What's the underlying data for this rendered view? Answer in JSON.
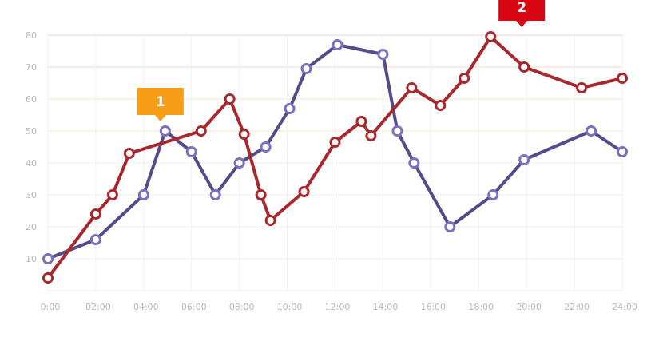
{
  "chart_data": {
    "type": "line",
    "title": "",
    "xlabel": "",
    "ylabel": "",
    "xlim": [
      0,
      24
    ],
    "ylim": [
      0,
      80
    ],
    "x_ticks": [
      "0:00",
      "02:00",
      "04:00",
      "06:00",
      "08:00",
      "10:00",
      "12:00",
      "14:00",
      "16:00",
      "18:00",
      "20:00",
      "22:00",
      "24:00"
    ],
    "x_tick_values": [
      0,
      2,
      4,
      6,
      8,
      10,
      12,
      14,
      16,
      18,
      20,
      22,
      24
    ],
    "y_ticks": [
      "10",
      "20",
      "30",
      "40",
      "50",
      "60",
      "70",
      "80"
    ],
    "y_tick_values": [
      10,
      20,
      30,
      40,
      50,
      60,
      70,
      80
    ],
    "grid": true,
    "legend": "none",
    "series": [
      {
        "color": "#564a8a",
        "marker_color": "#7b6fc2",
        "x": [
          0,
          2,
          4,
          4.9,
          6,
          7,
          8,
          9.1,
          10.1,
          10.8,
          12.1,
          14,
          14.6,
          15.3,
          16.8,
          18.6,
          19.9,
          22.7,
          24
        ],
        "y": [
          10,
          16,
          30,
          50,
          43.5,
          30,
          40,
          45,
          57,
          69.5,
          77,
          74,
          50,
          40,
          20,
          30,
          41,
          50,
          43.5
        ]
      },
      {
        "color": "#a8282d",
        "marker_color": "#a8282d",
        "x": [
          0,
          2,
          2.7,
          3.4,
          6.4,
          7.6,
          8.2,
          8.9,
          9.3,
          10.7,
          12,
          13.1,
          13.5,
          15.2,
          16.4,
          17.4,
          18.5,
          19.9,
          22.3,
          24
        ],
        "y": [
          4,
          24,
          30,
          43,
          50,
          60,
          49,
          30,
          22,
          31,
          46.5,
          53,
          48.5,
          63.5,
          58,
          66.5,
          79.5,
          70,
          63.5,
          66.5
        ]
      }
    ],
    "annotations": [
      {
        "label": "1",
        "x": 4.7,
        "y": 50,
        "color": "#f79e16"
      },
      {
        "label": "2",
        "x": 19.8,
        "y": 79.5,
        "color": "#d70613"
      }
    ]
  }
}
